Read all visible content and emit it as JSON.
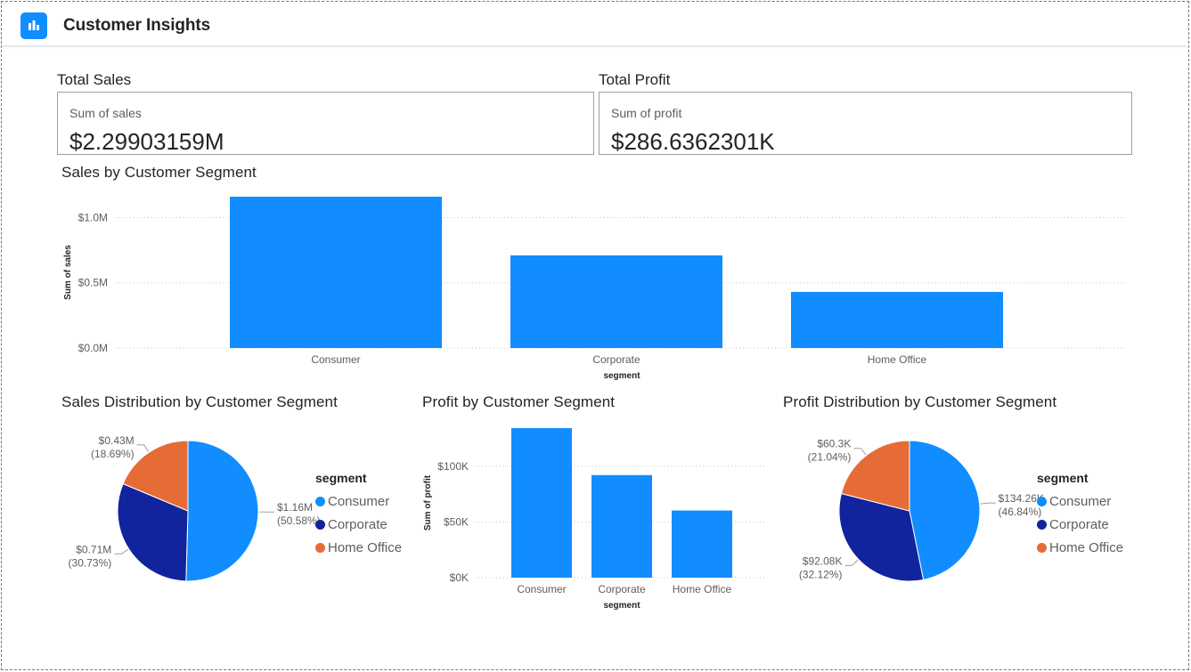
{
  "app": {
    "title": "Customer Insights",
    "icon": "bar-chart-icon"
  },
  "colors": {
    "accent": "#118dff",
    "consumer": "#118dff",
    "corporate": "#12239e",
    "home_office": "#e66c37",
    "grid": "#c8c6c4",
    "axis_text": "#605e5c"
  },
  "kpis": {
    "total_sales": {
      "title": "Total Sales",
      "label": "Sum of sales",
      "value": "$2.29903159M"
    },
    "total_profit": {
      "title": "Total Profit",
      "label": "Sum of profit",
      "value": "$286.6362301K"
    }
  },
  "charts": {
    "sales_bar": {
      "title": "Sales by Customer Segment"
    },
    "sales_pie": {
      "title": "Sales Distribution by Customer Segment"
    },
    "profit_bar": {
      "title": "Profit by Customer Segment"
    },
    "profit_pie": {
      "title": "Profit Distribution by Customer Segment"
    }
  },
  "legend": {
    "title": "segment",
    "items": [
      "Consumer",
      "Corporate",
      "Home Office"
    ]
  },
  "chart_data": [
    {
      "type": "bar",
      "title": "Sales by Customer Segment",
      "categories": [
        "Consumer",
        "Corporate",
        "Home Office"
      ],
      "values": [
        1.16,
        0.71,
        0.43
      ],
      "unit": "M",
      "xlabel": "segment",
      "ylabel": "Sum of sales",
      "yticks": [
        "$0.0M",
        "$0.5M",
        "$1.0M"
      ],
      "ytick_values": [
        0,
        0.5,
        1.0
      ],
      "ylim": [
        0,
        1.16
      ],
      "grid": true
    },
    {
      "type": "pie",
      "title": "Sales Distribution by Customer Segment",
      "categories": [
        "Consumer",
        "Corporate",
        "Home Office"
      ],
      "values": [
        1.16,
        0.71,
        0.43
      ],
      "percents": [
        50.58,
        30.73,
        18.69
      ],
      "value_labels": [
        "$1.16M",
        "$0.71M",
        "$0.43M"
      ],
      "percent_labels": [
        "(50.58%)",
        "(30.73%)",
        "(18.69%)"
      ],
      "legend_title": "segment",
      "legend_position": "right"
    },
    {
      "type": "bar",
      "title": "Profit by Customer Segment",
      "categories": [
        "Consumer",
        "Corporate",
        "Home Office"
      ],
      "values": [
        134.26,
        92.08,
        60.3
      ],
      "unit": "K",
      "xlabel": "segment",
      "ylabel": "Sum of profit",
      "yticks": [
        "$0K",
        "$50K",
        "$100K"
      ],
      "ytick_values": [
        0,
        50,
        100
      ],
      "ylim": [
        0,
        134.26
      ],
      "grid": true
    },
    {
      "type": "pie",
      "title": "Profit Distribution by Customer Segment",
      "categories": [
        "Consumer",
        "Corporate",
        "Home Office"
      ],
      "values": [
        134.26,
        92.08,
        60.3
      ],
      "percents": [
        46.84,
        32.12,
        21.04
      ],
      "value_labels": [
        "$134.26K",
        "$92.08K",
        "$60.3K"
      ],
      "percent_labels": [
        "(46.84%)",
        "(32.12%)",
        "(21.04%)"
      ],
      "legend_title": "segment",
      "legend_position": "right"
    }
  ]
}
